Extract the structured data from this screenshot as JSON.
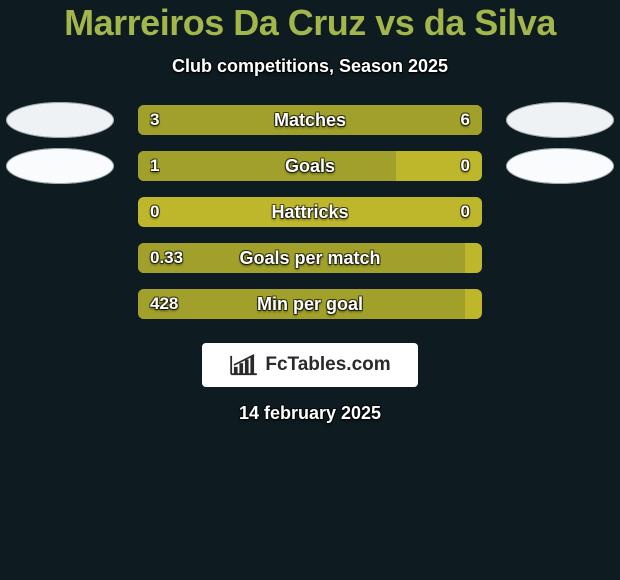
{
  "background_color": "#0e1b20",
  "title": "Marreiros Da Cruz vs da Silva",
  "title_color": "#a2b64b",
  "subtitle": "Club competitions, Season 2025",
  "date": "14 february 2025",
  "track_bg": "#beb72c",
  "fill_color": "#a0a02a",
  "text_color": "#ffffff",
  "avatar_color": "#eef2f4",
  "avatar_stroke": "#9aa6ab",
  "watermark_bg": "#ffffff",
  "watermark_text_color": "#2a2a2a",
  "watermark_text": "FcTables.com",
  "rows": [
    {
      "label": "Matches",
      "left": "3",
      "right": "6",
      "left_pct": 30,
      "right_pct": 70,
      "show_avatars": true,
      "avatar_bg": "#eef2f4"
    },
    {
      "label": "Goals",
      "left": "1",
      "right": "0",
      "left_pct": 75,
      "right_pct": 0,
      "show_avatars": true,
      "avatar_bg": "#fafbfc"
    },
    {
      "label": "Hattricks",
      "left": "0",
      "right": "0",
      "left_pct": 0,
      "right_pct": 0,
      "show_avatars": false
    },
    {
      "label": "Goals per match",
      "left": "0.33",
      "right": "",
      "left_pct": 95,
      "right_pct": 0,
      "show_avatars": false
    },
    {
      "label": "Min per goal",
      "left": "428",
      "right": "",
      "left_pct": 95,
      "right_pct": 0,
      "show_avatars": false
    }
  ]
}
